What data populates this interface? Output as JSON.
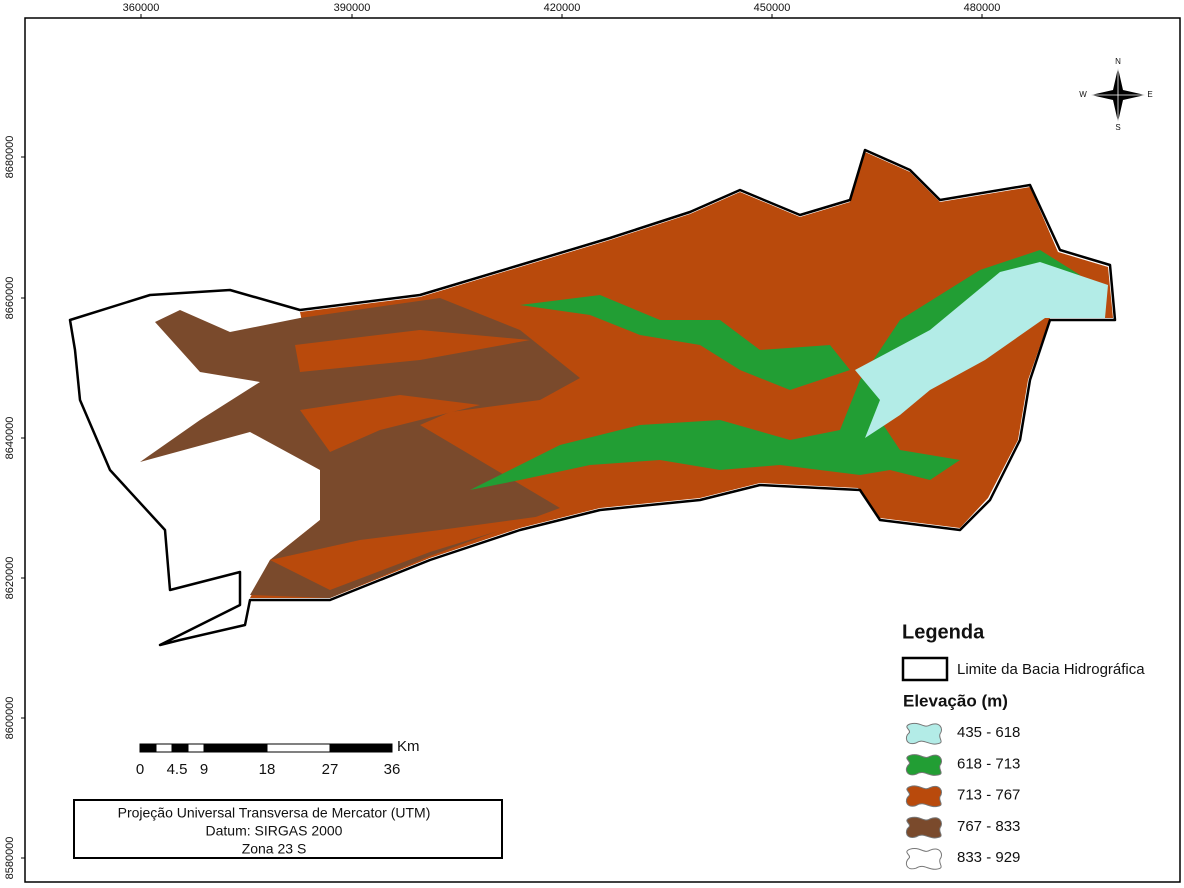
{
  "x_ticks": [
    "360000",
    "390000",
    "420000",
    "450000",
    "480000"
  ],
  "y_ticks": [
    "8680000",
    "8660000",
    "8640000",
    "8620000",
    "8600000",
    "8580000"
  ],
  "compass": {
    "n": "N",
    "s": "S",
    "e": "E",
    "w": "W"
  },
  "legend": {
    "title": "Legenda",
    "boundary": "Limite da Bacia Hidrográfica",
    "elevation_title": "Elevação (m)",
    "classes": [
      {
        "label": "435 - 618",
        "color": "#b3ece7"
      },
      {
        "label": "618 - 713",
        "color": "#229e34"
      },
      {
        "label": "713 - 767",
        "color": "#b94a0c"
      },
      {
        "label": "767 - 833",
        "color": "#7a4a2c"
      },
      {
        "label": "833 - 929",
        "color": "#ffffff"
      }
    ]
  },
  "scale_bar": {
    "unit": "Km",
    "labels": [
      "0",
      "4.5",
      "9",
      "18",
      "27",
      "36"
    ]
  },
  "projection": [
    "Projeção Universal Transversa de Mercator (UTM)",
    "Datum: SIRGAS 2000",
    "Zona 23 S"
  ]
}
